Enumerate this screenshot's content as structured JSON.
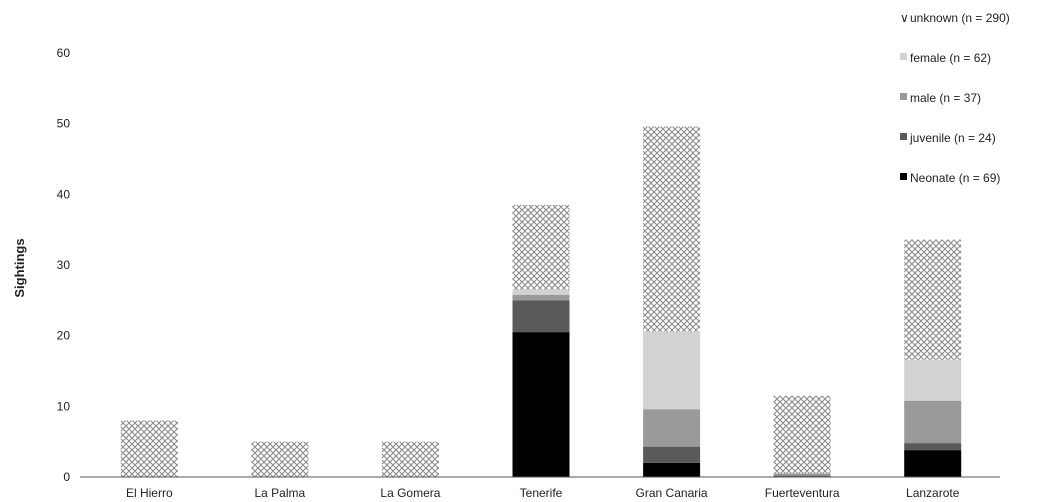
{
  "chart_data": {
    "type": "bar",
    "stacked": true,
    "title": "",
    "xlabel": "",
    "ylabel": "Sightings",
    "ylim": [
      0,
      60
    ],
    "yticks": [
      "0",
      "10",
      "20",
      "30",
      "40",
      "50",
      "60"
    ],
    "grid": false,
    "legend_position": "top-right",
    "categories": [
      "El Hierro",
      "La Palma",
      "La Gomera",
      "Tenerife",
      "Gran Canaria",
      "Fuerteventura",
      "Lanzarote"
    ],
    "series": [
      {
        "name": "Neonate (n = 69)",
        "key": "neonate",
        "color": "#000000",
        "pattern": "solid",
        "values": [
          0,
          0,
          0,
          20.5,
          2,
          0,
          3.8
        ]
      },
      {
        "name": "juvenile (n = 24)",
        "key": "juvenile",
        "color": "#5a5a5a",
        "pattern": "solid",
        "values": [
          0,
          0,
          0,
          4.5,
          2.3,
          0.2,
          1
        ]
      },
      {
        "name": "male (n = 37)",
        "key": "male",
        "color": "#9a9a9a",
        "pattern": "solid",
        "values": [
          0,
          0,
          0,
          0.8,
          5.3,
          0.3,
          6
        ]
      },
      {
        "name": "female (n = 62)",
        "key": "female",
        "color": "#d2d2d2",
        "pattern": "solid",
        "values": [
          0,
          0,
          0,
          0.7,
          11,
          0,
          5.8
        ]
      },
      {
        "name": "unknown (n = 290)",
        "key": "unknown",
        "color": "#bdbdbd",
        "pattern": "crosshatch",
        "values": [
          8,
          5,
          5,
          12,
          29,
          11,
          17
        ]
      }
    ],
    "legend_order": [
      "unknown",
      "female",
      "male",
      "juvenile",
      "neonate"
    ]
  }
}
